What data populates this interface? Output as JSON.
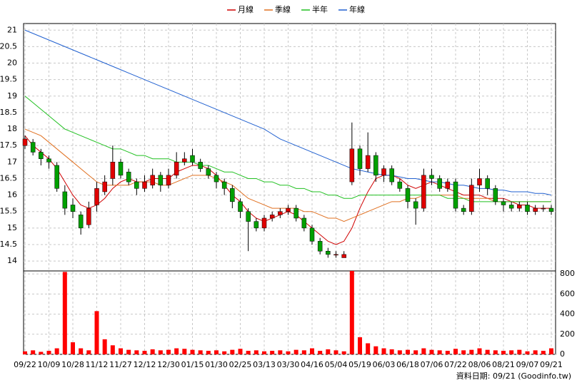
{
  "chart_data": [
    {
      "type": "candlestick",
      "categories": [
        "09/22",
        null,
        null,
        "10/09",
        null,
        null,
        "10/28",
        null,
        null,
        "11/12",
        null,
        null,
        "11/27",
        null,
        null,
        "12/12",
        null,
        null,
        "12/30",
        null,
        null,
        "01/15",
        null,
        null,
        "01/30",
        null,
        null,
        "02/25",
        null,
        null,
        "03/13",
        null,
        null,
        "03/30",
        null,
        null,
        "04/16",
        null,
        null,
        "05/04",
        null,
        null,
        "05/19",
        null,
        null,
        "06/03",
        null,
        null,
        "06/18",
        null,
        null,
        "07/06",
        null,
        null,
        "07/22",
        null,
        null,
        "08/06",
        null,
        null,
        "08/21",
        null,
        null,
        "09/07",
        null,
        null,
        "09/21"
      ],
      "open": [
        17.5,
        17.6,
        17.3,
        17.1,
        16.9,
        16.1,
        15.7,
        15.4,
        15.1,
        15.7,
        16.1,
        16.5,
        17.0,
        16.7,
        16.4,
        16.2,
        16.3,
        16.6,
        16.3,
        16.6,
        17.0,
        17.2,
        17.0,
        16.8,
        16.6,
        16.4,
        16.2,
        15.8,
        15.5,
        15.2,
        15.0,
        15.3,
        15.4,
        15.5,
        15.6,
        15.3,
        15.0,
        14.6,
        14.3,
        14.2,
        14.1,
        16.4,
        17.4,
        16.8,
        17.2,
        16.6,
        16.8,
        16.4,
        16.2,
        15.8,
        15.6,
        16.6,
        16.5,
        16.2,
        16.4,
        15.6,
        15.5,
        16.3,
        16.5,
        16.2,
        15.8,
        15.7,
        15.6,
        15.7,
        15.5,
        15.6,
        15.6
      ],
      "high": [
        17.8,
        17.7,
        17.4,
        17.2,
        17.0,
        16.3,
        15.9,
        15.5,
        15.8,
        16.4,
        16.6,
        17.5,
        17.1,
        16.8,
        16.5,
        16.6,
        16.8,
        16.7,
        16.8,
        17.3,
        17.3,
        17.4,
        17.1,
        16.9,
        16.7,
        16.5,
        16.3,
        15.9,
        15.6,
        15.3,
        15.4,
        15.5,
        15.6,
        15.7,
        15.7,
        15.4,
        15.1,
        14.7,
        14.4,
        14.3,
        14.3,
        18.2,
        17.5,
        17.9,
        17.3,
        16.9,
        16.9,
        16.5,
        16.3,
        15.9,
        16.8,
        16.8,
        16.6,
        16.5,
        16.5,
        15.7,
        16.5,
        16.8,
        16.6,
        16.3,
        15.9,
        15.8,
        15.8,
        15.8,
        15.7,
        15.7,
        15.7
      ],
      "low": [
        17.4,
        17.2,
        16.9,
        16.8,
        16.1,
        15.4,
        15.3,
        14.8,
        15.0,
        15.5,
        16.0,
        16.3,
        16.5,
        16.3,
        16.0,
        16.1,
        16.2,
        16.1,
        16.2,
        16.5,
        16.9,
        16.9,
        16.7,
        16.5,
        16.2,
        16.0,
        15.6,
        15.3,
        14.3,
        14.9,
        14.9,
        15.2,
        15.3,
        15.4,
        15.2,
        14.9,
        14.5,
        14.2,
        14.1,
        14.1,
        14.1,
        16.3,
        16.6,
        16.7,
        16.4,
        16.4,
        16.3,
        16.1,
        15.6,
        15.1,
        15.5,
        16.3,
        16.1,
        16.1,
        15.5,
        15.4,
        15.4,
        16.1,
        16.0,
        15.7,
        15.5,
        15.5,
        15.5,
        15.4,
        15.4,
        15.5,
        15.4
      ],
      "close": [
        17.7,
        17.3,
        17.1,
        17.0,
        16.2,
        15.6,
        15.5,
        15.0,
        15.6,
        16.2,
        16.4,
        17.0,
        16.6,
        16.4,
        16.2,
        16.4,
        16.6,
        16.3,
        16.6,
        17.0,
        17.1,
        17.0,
        16.8,
        16.6,
        16.4,
        16.2,
        15.8,
        15.5,
        15.2,
        15.0,
        15.3,
        15.4,
        15.5,
        15.6,
        15.3,
        15.0,
        14.6,
        14.3,
        14.2,
        14.2,
        14.2,
        17.4,
        16.8,
        17.2,
        16.6,
        16.8,
        16.4,
        16.2,
        15.8,
        15.6,
        16.6,
        16.5,
        16.2,
        16.4,
        15.6,
        15.5,
        16.3,
        16.5,
        16.2,
        15.8,
        15.7,
        15.6,
        15.7,
        15.5,
        15.6,
        15.6,
        15.5
      ],
      "up_color": "#e00000",
      "down_color": "#00a000",
      "series": [
        {
          "name": "月線",
          "color": "#d00000",
          "values": [
            17.8,
            17.5,
            17.3,
            17.1,
            16.8,
            16.4,
            16.0,
            15.7,
            15.6,
            15.7,
            15.9,
            16.2,
            16.4,
            16.5,
            16.4,
            16.4,
            16.5,
            16.5,
            16.5,
            16.7,
            16.8,
            16.9,
            16.9,
            16.8,
            16.6,
            16.3,
            16.0,
            15.8,
            15.5,
            15.3,
            15.2,
            15.3,
            15.4,
            15.5,
            15.4,
            15.2,
            15.0,
            14.8,
            14.6,
            14.5,
            14.6,
            15.0,
            15.6,
            16.1,
            16.5,
            16.6,
            16.6,
            16.5,
            16.3,
            16.2,
            16.3,
            16.4,
            16.3,
            16.2,
            16.1,
            16.0,
            16.0,
            16.0,
            15.9,
            15.9,
            15.9,
            15.8,
            15.7,
            15.7,
            15.6,
            15.6,
            15.6
          ]
        },
        {
          "name": "季線",
          "color": "#e07020",
          "values": [
            18.0,
            17.9,
            17.8,
            17.6,
            17.4,
            17.2,
            17.0,
            16.8,
            16.6,
            16.4,
            16.3,
            16.3,
            16.3,
            16.3,
            16.4,
            16.4,
            16.4,
            16.3,
            16.3,
            16.4,
            16.5,
            16.6,
            16.6,
            16.6,
            16.5,
            16.4,
            16.3,
            16.1,
            15.9,
            15.8,
            15.7,
            15.6,
            15.6,
            15.6,
            15.6,
            15.5,
            15.5,
            15.4,
            15.3,
            15.3,
            15.2,
            15.3,
            15.4,
            15.5,
            15.6,
            15.7,
            15.8,
            15.8,
            15.9,
            15.9,
            16.0,
            16.0,
            16.0,
            16.0,
            16.0,
            15.9,
            15.9,
            15.9,
            15.9,
            15.8,
            15.8,
            15.8,
            15.8,
            15.8,
            15.8,
            15.8,
            15.8
          ]
        },
        {
          "name": "半年",
          "color": "#20c020",
          "values": [
            19.0,
            18.8,
            18.6,
            18.4,
            18.2,
            18.0,
            17.9,
            17.8,
            17.7,
            17.6,
            17.5,
            17.4,
            17.4,
            17.3,
            17.2,
            17.2,
            17.1,
            17.1,
            17.1,
            17.0,
            17.0,
            17.0,
            16.9,
            16.9,
            16.8,
            16.7,
            16.7,
            16.6,
            16.5,
            16.5,
            16.4,
            16.4,
            16.3,
            16.3,
            16.2,
            16.2,
            16.1,
            16.1,
            16.0,
            16.0,
            15.9,
            15.9,
            16.0,
            16.0,
            16.0,
            16.0,
            16.0,
            16.0,
            16.0,
            16.0,
            16.0,
            16.0,
            16.0,
            15.9,
            15.9,
            15.9,
            15.8,
            15.8,
            15.8,
            15.8,
            15.8,
            15.8,
            15.8,
            15.8,
            15.8,
            15.8,
            15.8
          ]
        },
        {
          "name": "年線",
          "color": "#2060d0",
          "values": [
            21.0,
            20.9,
            20.8,
            20.7,
            20.6,
            20.5,
            20.4,
            20.3,
            20.2,
            20.1,
            20.0,
            19.9,
            19.8,
            19.7,
            19.6,
            19.5,
            19.4,
            19.3,
            19.2,
            19.1,
            19.0,
            18.9,
            18.8,
            18.7,
            18.6,
            18.5,
            18.4,
            18.3,
            18.2,
            18.1,
            18.0,
            17.85,
            17.7,
            17.6,
            17.5,
            17.4,
            17.3,
            17.2,
            17.1,
            17.0,
            16.9,
            16.8,
            16.75,
            16.7,
            16.65,
            16.6,
            16.6,
            16.55,
            16.5,
            16.5,
            16.45,
            16.4,
            16.4,
            16.35,
            16.3,
            16.3,
            16.25,
            16.2,
            16.2,
            16.15,
            16.15,
            16.1,
            16.1,
            16.1,
            16.05,
            16.05,
            16.0
          ]
        }
      ],
      "ylim": [
        13.7,
        21.2
      ],
      "yticks": [
        14,
        14.5,
        15,
        15.5,
        16,
        16.5,
        17,
        17.5,
        18,
        18.5,
        19,
        19.5,
        20,
        20.5,
        21
      ],
      "grid": true
    },
    {
      "type": "bar",
      "values": [
        30,
        40,
        25,
        35,
        60,
        820,
        120,
        60,
        40,
        430,
        150,
        90,
        60,
        45,
        40,
        35,
        50,
        40,
        45,
        60,
        55,
        45,
        40,
        35,
        40,
        30,
        45,
        55,
        35,
        40,
        30,
        35,
        40,
        30,
        45,
        40,
        60,
        35,
        50,
        40,
        30,
        830,
        170,
        110,
        80,
        60,
        50,
        40,
        45,
        40,
        60,
        45,
        40,
        35,
        55,
        40,
        45,
        60,
        45,
        40,
        35,
        40,
        45,
        30,
        40,
        35,
        60
      ],
      "color": "#ff0000",
      "ylim": [
        0,
        830
      ],
      "yticks": [
        0,
        200,
        400,
        600,
        800
      ],
      "grid": true
    }
  ],
  "footer": "資料日期: 09/21  (Goodinfo.tw)"
}
